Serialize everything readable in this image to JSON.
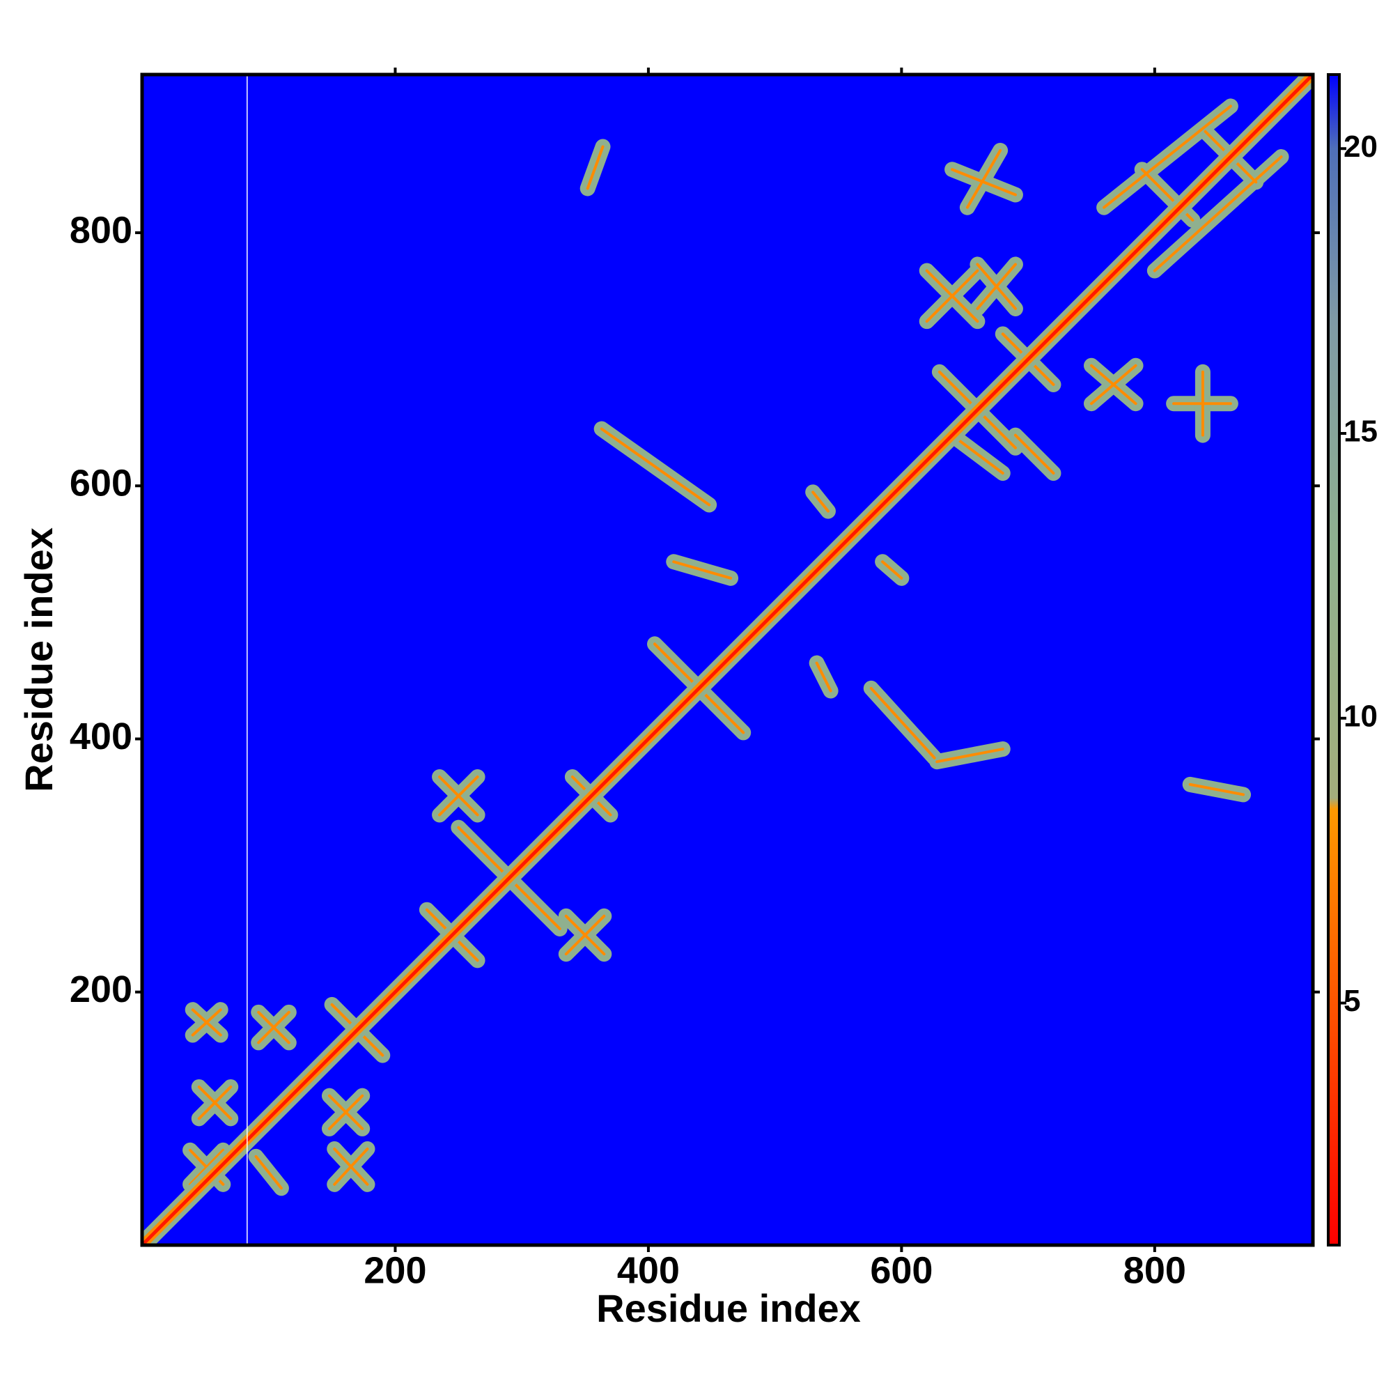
{
  "chart_data": {
    "type": "contact-map",
    "xlabel": "Residue index",
    "ylabel": "Residue index",
    "xlim": [
      0,
      925
    ],
    "ylim": [
      0,
      925
    ],
    "xticks": [
      200,
      400,
      600,
      800
    ],
    "yticks": [
      200,
      400,
      600,
      800
    ],
    "background": "#0000ff",
    "feature_color": "#8fb08f",
    "core_color": "#ff8c00",
    "diagonal_color": "#ff1a00",
    "gap_x": 83,
    "diagonal": [
      0,
      0,
      925,
      925
    ],
    "features": [
      [
        225,
        265,
        265,
        225
      ],
      [
        250,
        330,
        330,
        250
      ],
      [
        340,
        370,
        370,
        340
      ],
      [
        405,
        475,
        475,
        405
      ],
      [
        150,
        190,
        190,
        150
      ],
      [
        235,
        370,
        265,
        340
      ],
      [
        235,
        340,
        265,
        370
      ],
      [
        335,
        260,
        365,
        230
      ],
      [
        335,
        230,
        365,
        260
      ],
      [
        352,
        835,
        364,
        868
      ],
      [
        640,
        850,
        690,
        830
      ],
      [
        652,
        820,
        678,
        865
      ],
      [
        815,
        665,
        860,
        665
      ],
      [
        838,
        640,
        838,
        690
      ],
      [
        828,
        364,
        870,
        356
      ],
      [
        363,
        645,
        448,
        585
      ],
      [
        576,
        440,
        626,
        385
      ],
      [
        628,
        382,
        680,
        392
      ],
      [
        420,
        540,
        465,
        527
      ],
      [
        585,
        540,
        600,
        527
      ],
      [
        530,
        595,
        542,
        580
      ],
      [
        533,
        460,
        544,
        438
      ],
      [
        630,
        690,
        690,
        630
      ],
      [
        680,
        720,
        720,
        680
      ],
      [
        750,
        695,
        785,
        665
      ],
      [
        750,
        665,
        785,
        695
      ],
      [
        620,
        770,
        660,
        730
      ],
      [
        620,
        730,
        660,
        770
      ],
      [
        660,
        775,
        690,
        740
      ],
      [
        660,
        740,
        690,
        775
      ],
      [
        690,
        640,
        720,
        610
      ],
      [
        640,
        640,
        680,
        610
      ],
      [
        760,
        820,
        860,
        900
      ],
      [
        800,
        770,
        900,
        860
      ],
      [
        790,
        850,
        830,
        810
      ],
      [
        840,
        880,
        880,
        840
      ],
      [
        40,
        186,
        62,
        166
      ],
      [
        40,
        166,
        62,
        186
      ],
      [
        92,
        184,
        116,
        160
      ],
      [
        92,
        160,
        116,
        184
      ],
      [
        45,
        125,
        70,
        100
      ],
      [
        45,
        100,
        70,
        125
      ],
      [
        148,
        118,
        174,
        92
      ],
      [
        148,
        92,
        174,
        118
      ],
      [
        152,
        76,
        178,
        48
      ],
      [
        152,
        48,
        178,
        76
      ],
      [
        38,
        75,
        64,
        48
      ],
      [
        38,
        48,
        64,
        75
      ],
      [
        90,
        70,
        110,
        45
      ]
    ],
    "colorbar": {
      "lim": [
        0.75,
        21.3
      ],
      "ticks": [
        5,
        10,
        15,
        20
      ],
      "colorscale": [
        [
          0.75,
          "#ff0000"
        ],
        [
          8.4,
          "#ff9900"
        ],
        [
          8.6,
          "#a3ad7c"
        ],
        [
          13,
          "#8fb08f"
        ],
        [
          17,
          "#7f9aa6"
        ],
        [
          20,
          "#4f6fb8"
        ],
        [
          21.3,
          "#0000ff"
        ]
      ]
    }
  }
}
